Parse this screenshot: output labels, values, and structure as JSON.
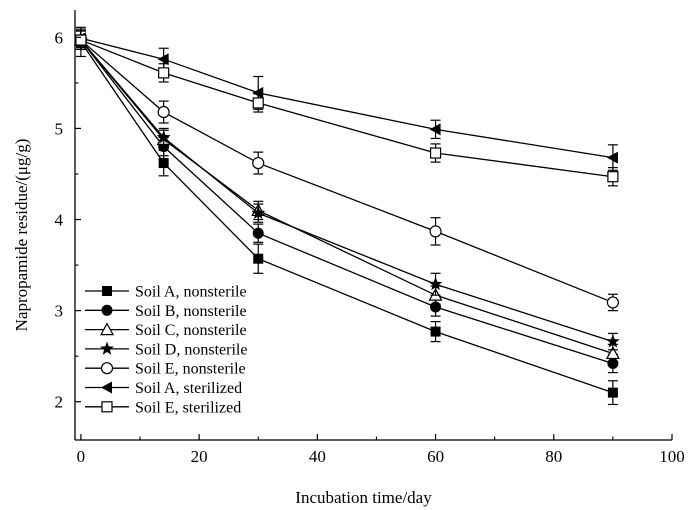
{
  "chart_data": {
    "type": "line",
    "title": "",
    "xlabel": "Incubation time/day",
    "ylabel": "Napropamide residue/(μg/g)",
    "xlim": [
      -1,
      100
    ],
    "ylim": [
      1.58,
      6.3
    ],
    "xticks": [
      0,
      20,
      40,
      60,
      80,
      100
    ],
    "yticks": [
      2,
      3,
      4,
      5,
      6
    ],
    "x": [
      0,
      14,
      30,
      60,
      90
    ],
    "grid": false,
    "legend_position": "bottom-left",
    "series": [
      {
        "name": "Soil A, nonsterile",
        "marker": "square-filled",
        "values": [
          5.95,
          4.62,
          3.57,
          2.77,
          2.1
        ],
        "errors": [
          0.16,
          0.14,
          0.16,
          0.11,
          0.13
        ]
      },
      {
        "name": "Soil B, nonsterile",
        "marker": "circle-filled",
        "values": [
          5.97,
          4.8,
          3.85,
          3.04,
          2.42
        ],
        "errors": [
          0.1,
          0.1,
          0.1,
          0.1,
          0.1
        ]
      },
      {
        "name": "Soil C, nonsterile",
        "marker": "triangle-open",
        "values": [
          5.97,
          4.88,
          4.1,
          3.17,
          2.53
        ],
        "errors": [
          0.1,
          0.1,
          0.1,
          0.1,
          0.1
        ]
      },
      {
        "name": "Soil D, nonsterile",
        "marker": "star-filled",
        "values": [
          5.97,
          4.9,
          4.07,
          3.29,
          2.66
        ],
        "errors": [
          0.1,
          0.1,
          0.1,
          0.12,
          0.09
        ]
      },
      {
        "name": "Soil E, nonsterile",
        "marker": "circle-open",
        "values": [
          5.97,
          5.18,
          4.62,
          3.87,
          3.09
        ],
        "errors": [
          0.1,
          0.12,
          0.12,
          0.15,
          0.09
        ]
      },
      {
        "name": "Soil A, sterilized",
        "marker": "triangle-left-filled",
        "values": [
          5.99,
          5.76,
          5.39,
          4.99,
          4.68
        ],
        "errors": [
          0.1,
          0.12,
          0.18,
          0.1,
          0.14
        ]
      },
      {
        "name": "Soil E, sterilized",
        "marker": "square-open",
        "values": [
          5.97,
          5.61,
          5.28,
          4.73,
          4.47
        ],
        "errors": [
          0.1,
          0.1,
          0.1,
          0.1,
          0.1
        ]
      }
    ]
  }
}
